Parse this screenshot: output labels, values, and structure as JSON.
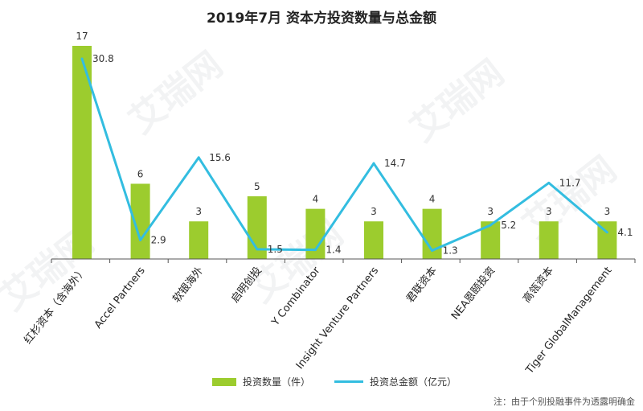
{
  "chart_data": {
    "type": "bar",
    "title": "2019年7月 资本方投资数量与总金额",
    "categories": [
      "红杉资本（含海外）",
      "Accel Partners",
      "软银海外",
      "启明创投",
      "Y Combinator",
      "Insight Venture Partners",
      "君联资本",
      "NEA恩颐投资",
      "高瓴资本",
      "Tiger GlobalManagement"
    ],
    "series": [
      {
        "name": "投资数量（件）",
        "type": "bar",
        "values": [
          17,
          6,
          3,
          5,
          4,
          3,
          4,
          3,
          3,
          3
        ],
        "labels": [
          "17",
          "6",
          "3",
          "5",
          "4",
          "3",
          "4",
          "3",
          "3",
          "3"
        ]
      },
      {
        "name": "投资总金额（亿元）",
        "type": "line",
        "values": [
          30.8,
          2.9,
          15.6,
          1.5,
          1.4,
          14.7,
          1.3,
          5.2,
          11.7,
          4.1
        ],
        "labels": [
          "30.8",
          "2.9",
          "15.6",
          "1.5",
          "1.4",
          "14.7",
          "1.3",
          "5.2",
          "11.7",
          "4.1"
        ]
      }
    ],
    "bar_color": "#9ccc2e",
    "line_color": "#33bde0",
    "legend_position": "bottom",
    "grid": false,
    "footnote": "注：由于个别投融事件为透露明确金",
    "watermark": "艾瑞网"
  }
}
